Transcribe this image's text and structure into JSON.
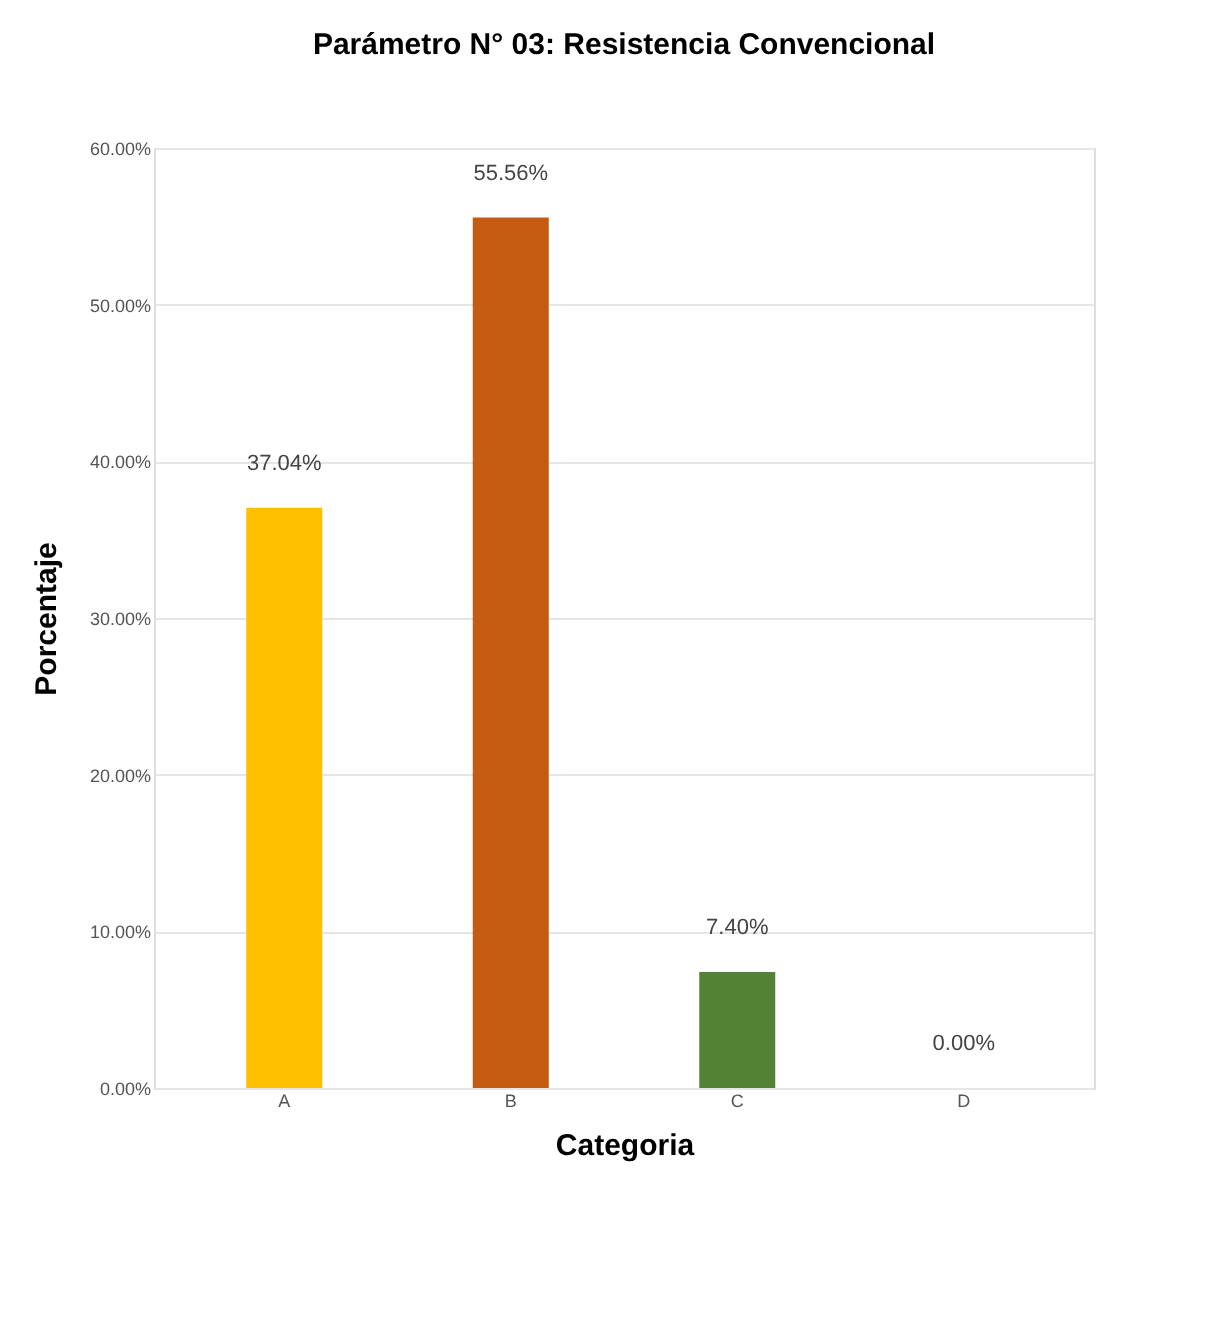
{
  "chart_data": {
    "type": "bar",
    "title": "Parámetro N° 03: Resistencia Convencional",
    "xlabel": "Categoria",
    "ylabel": "Porcentaje",
    "categories": [
      "A",
      "B",
      "C",
      "D"
    ],
    "values": [
      37.04,
      55.56,
      7.4,
      0.0
    ],
    "colors": [
      "#ffc000",
      "#c55a11",
      "#548235",
      "#2e75b6"
    ],
    "value_labels": [
      "37.04%",
      "55.56%",
      "7.40%",
      "0.00%"
    ],
    "ylim": [
      0,
      60
    ],
    "yticks": [
      {
        "value": 0,
        "label": "0.00%"
      },
      {
        "value": 10,
        "label": "10.00%"
      },
      {
        "value": 20,
        "label": "20.00%"
      },
      {
        "value": 30,
        "label": "30.00%"
      },
      {
        "value": 40,
        "label": "40.00%"
      },
      {
        "value": 50,
        "label": "50.00%"
      },
      {
        "value": 60,
        "label": "60.00%"
      }
    ],
    "grid": "y"
  }
}
